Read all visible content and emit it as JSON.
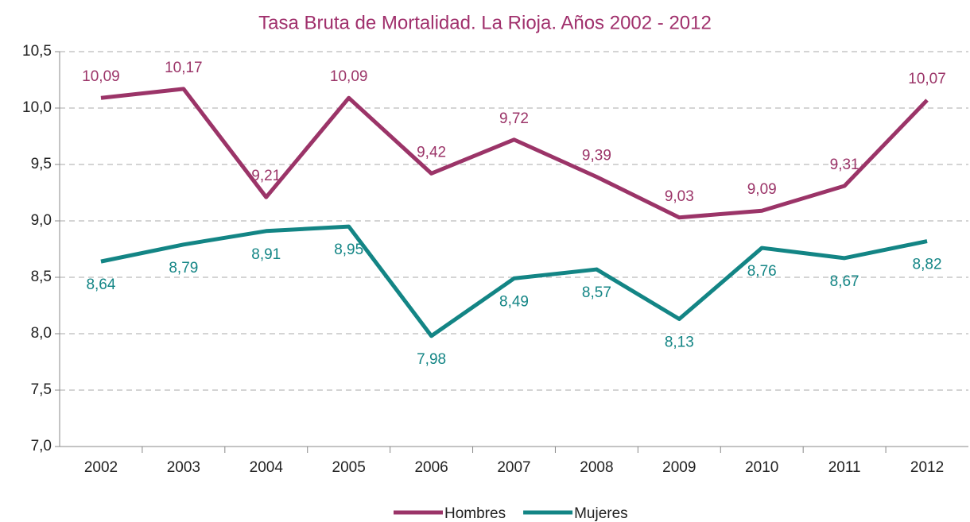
{
  "chart_data": {
    "type": "line",
    "title": "Tasa Bruta de Mortalidad. La Rioja. Años 2002 - 2012",
    "categories": [
      "2002",
      "2003",
      "2004",
      "2005",
      "2006",
      "2007",
      "2008",
      "2009",
      "2010",
      "2011",
      "2012"
    ],
    "series": [
      {
        "name": "Hombres",
        "color": "#9b3468",
        "values": [
          10.09,
          10.17,
          9.21,
          10.09,
          9.42,
          9.72,
          9.39,
          9.03,
          9.09,
          9.31,
          10.07
        ],
        "value_labels": [
          "10,09",
          "10,17",
          "9,21",
          "10,09",
          "9,42",
          "9,72",
          "9,39",
          "9,03",
          "9,09",
          "9,31",
          "10,07"
        ]
      },
      {
        "name": "Mujeres",
        "color": "#138585",
        "values": [
          8.64,
          8.79,
          8.91,
          8.95,
          7.98,
          8.49,
          8.57,
          8.13,
          8.76,
          8.67,
          8.82
        ],
        "value_labels": [
          "8,64",
          "8,79",
          "8,91",
          "8,95",
          "7,98",
          "8,49",
          "8,57",
          "8,13",
          "8,76",
          "8,67",
          "8,82"
        ]
      }
    ],
    "ylim": [
      7.0,
      10.5
    ],
    "yticks": [
      {
        "value": 7.0,
        "label": "7,0"
      },
      {
        "value": 7.5,
        "label": "7,5"
      },
      {
        "value": 8.0,
        "label": "8,0"
      },
      {
        "value": 8.5,
        "label": "8,5"
      },
      {
        "value": 9.0,
        "label": "9,0"
      },
      {
        "value": 9.5,
        "label": "9,5"
      },
      {
        "value": 10.0,
        "label": "10,0"
      },
      {
        "value": 10.5,
        "label": "10,5"
      }
    ],
    "grid": true,
    "legend": "bottom"
  }
}
